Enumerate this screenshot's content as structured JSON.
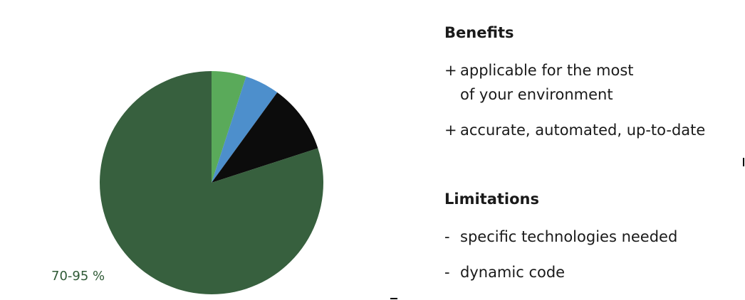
{
  "chart_data": {
    "type": "pie",
    "slices": [
      {
        "value": 5,
        "color": "#5aaa5a"
      },
      {
        "value": 5,
        "color": "#4d8fcc"
      },
      {
        "value": 10,
        "color": "#0c0c0c"
      },
      {
        "value": 80,
        "color": "#37603e"
      }
    ],
    "data_labels": [
      "70-95 %"
    ],
    "start_angle": "12 o'clock",
    "direction": "clockwise"
  },
  "benefits": {
    "heading": "Benefits",
    "items": [
      {
        "marker": "+",
        "text": "applicable for the most\nof your environment"
      },
      {
        "marker": "+",
        "text": "accurate, automated, up-to-date"
      }
    ]
  },
  "limitations": {
    "heading": "Limitations",
    "items": [
      {
        "marker": "-",
        "text": "specific technologies needed"
      },
      {
        "marker": "-",
        "text": "dynamic code"
      }
    ]
  }
}
